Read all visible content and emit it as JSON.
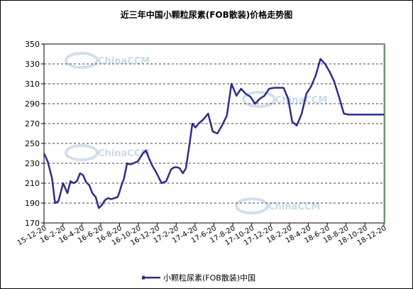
{
  "chart_data": {
    "type": "line",
    "title": "近三年中国小颗粒尿素(FOB散装)价格走势图",
    "xlabel": "",
    "ylabel": "",
    "ylim": [
      170,
      350
    ],
    "yticks": [
      170,
      190,
      210,
      230,
      250,
      270,
      290,
      310,
      330,
      350
    ],
    "x_tick_labels": [
      "15-12-20",
      "16-2-20",
      "16-4-20",
      "16-6-20",
      "16-8-20",
      "16-10-20",
      "16-12-20",
      "17-2-20",
      "17-4-20",
      "17-6-20",
      "17-8-20",
      "17-10-20",
      "17-12-20",
      "18-2-20",
      "18-4-20",
      "18-6-20",
      "18-8-20",
      "18-10-20",
      "18-12-20"
    ],
    "grid": true,
    "legend_position": "bottom",
    "series": [
      {
        "name": "小颗粒尿素(FOB散装)中国",
        "color": "#2e2b8f",
        "x": [
          "2015-12-20",
          "2016-01-01",
          "2016-01-15",
          "2016-01-25",
          "2016-02-05",
          "2016-02-20",
          "2016-03-05",
          "2016-03-15",
          "2016-03-25",
          "2016-04-05",
          "2016-04-15",
          "2016-04-25",
          "2016-05-05",
          "2016-05-15",
          "2016-05-25",
          "2016-06-05",
          "2016-06-15",
          "2016-06-25",
          "2016-07-05",
          "2016-07-15",
          "2016-07-25",
          "2016-08-05",
          "2016-08-15",
          "2016-08-20",
          "2016-08-28",
          "2016-09-05",
          "2016-09-15",
          "2016-09-25",
          "2016-10-05",
          "2016-10-20",
          "2016-11-05",
          "2016-11-15",
          "2016-11-25",
          "2016-12-05",
          "2016-12-20",
          "2017-01-05",
          "2017-01-20",
          "2017-02-05",
          "2017-02-15",
          "2017-02-25",
          "2017-03-05",
          "2017-03-15",
          "2017-03-25",
          "2017-04-05",
          "2017-04-15",
          "2017-04-25",
          "2017-05-05",
          "2017-05-20",
          "2017-06-05",
          "2017-06-20",
          "2017-07-05",
          "2017-07-20",
          "2017-08-05",
          "2017-08-20",
          "2017-09-05",
          "2017-09-20",
          "2017-10-05",
          "2017-10-20",
          "2017-11-05",
          "2017-11-20",
          "2017-12-05",
          "2017-12-20",
          "2018-01-05",
          "2018-01-20",
          "2018-02-05",
          "2018-02-20",
          "2018-03-05",
          "2018-03-20",
          "2018-04-05",
          "2018-04-20",
          "2018-05-05",
          "2018-05-20",
          "2018-06-05",
          "2018-06-20",
          "2018-07-05",
          "2018-07-20",
          "2018-08-05",
          "2018-08-20",
          "2018-09-05",
          "2018-09-20",
          "2018-10-05",
          "2018-10-20",
          "2018-10-28",
          "2018-11-05",
          "2018-11-20",
          "2018-12-05",
          "2018-12-20",
          "2018-12-28"
        ],
        "values": [
          240,
          232,
          215,
          190,
          192,
          210,
          200,
          212,
          210,
          212,
          220,
          218,
          211,
          208,
          200,
          196,
          185,
          188,
          193,
          195,
          194,
          195,
          196,
          200,
          208,
          215,
          230,
          229,
          230,
          232,
          240,
          243,
          235,
          228,
          220,
          210,
          212,
          224,
          226,
          226,
          225,
          220,
          225,
          248,
          270,
          266,
          270,
          274,
          280,
          262,
          260,
          268,
          278,
          310,
          298,
          305,
          300,
          297,
          290,
          295,
          298,
          305,
          306,
          306,
          306,
          295,
          272,
          268,
          280,
          300,
          307,
          318,
          335,
          330,
          322,
          312,
          296,
          280,
          279,
          279,
          279,
          279,
          279,
          279,
          279,
          279,
          279,
          279
        ]
      }
    ]
  },
  "watermark": {
    "text": "ChinaCCM",
    "color": "#c9dce9"
  }
}
